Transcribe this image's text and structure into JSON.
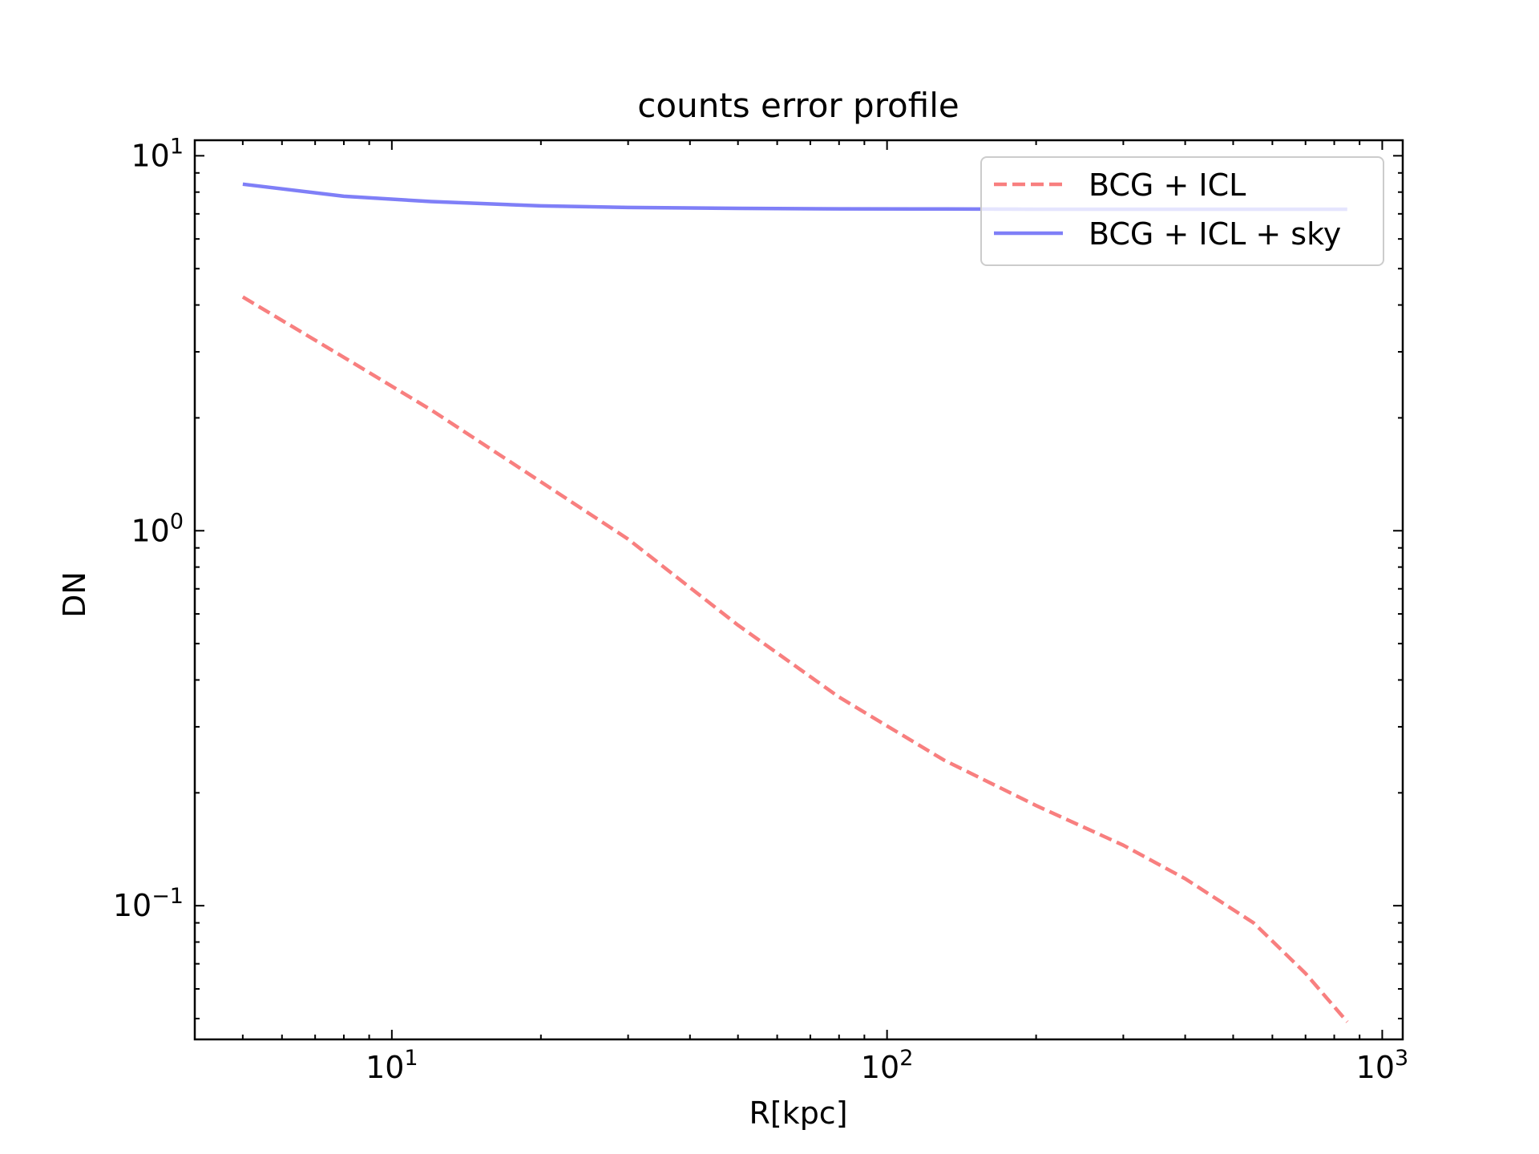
{
  "chart_data": {
    "type": "line",
    "title": "counts error profile",
    "xlabel": "R[kpc]",
    "ylabel": "DN",
    "xscale": "log",
    "yscale": "log",
    "xlim": [
      4,
      1100
    ],
    "ylim": [
      0.044,
      11
    ],
    "grid": false,
    "legend_position": "top-right",
    "x_ticks": [
      {
        "value": 10,
        "base": "10",
        "exp": "1"
      },
      {
        "value": 100,
        "base": "10",
        "exp": "2"
      },
      {
        "value": 1000,
        "base": "10",
        "exp": "3"
      }
    ],
    "y_ticks": [
      {
        "value": 0.1,
        "base": "10",
        "exp": "−1"
      },
      {
        "value": 1,
        "base": "10",
        "exp": "0"
      },
      {
        "value": 10,
        "base": "10",
        "exp": "1"
      }
    ],
    "series": [
      {
        "name": "BCG + ICL",
        "color": "#f87f7f",
        "style": "dashed",
        "x": [
          5,
          8,
          12,
          20,
          30,
          50,
          80,
          130,
          200,
          300,
          400,
          550,
          700,
          850
        ],
        "y": [
          4.2,
          2.9,
          2.1,
          1.35,
          0.95,
          0.56,
          0.36,
          0.245,
          0.185,
          0.145,
          0.118,
          0.09,
          0.066,
          0.049
        ]
      },
      {
        "name": "BCG + ICL + sky",
        "color": "#7f7ff7",
        "style": "solid",
        "x": [
          5,
          8,
          12,
          20,
          30,
          50,
          80,
          130,
          200,
          300,
          500,
          850
        ],
        "y": [
          8.4,
          7.8,
          7.55,
          7.35,
          7.28,
          7.24,
          7.22,
          7.21,
          7.2,
          7.2,
          7.2,
          7.2
        ]
      }
    ]
  }
}
